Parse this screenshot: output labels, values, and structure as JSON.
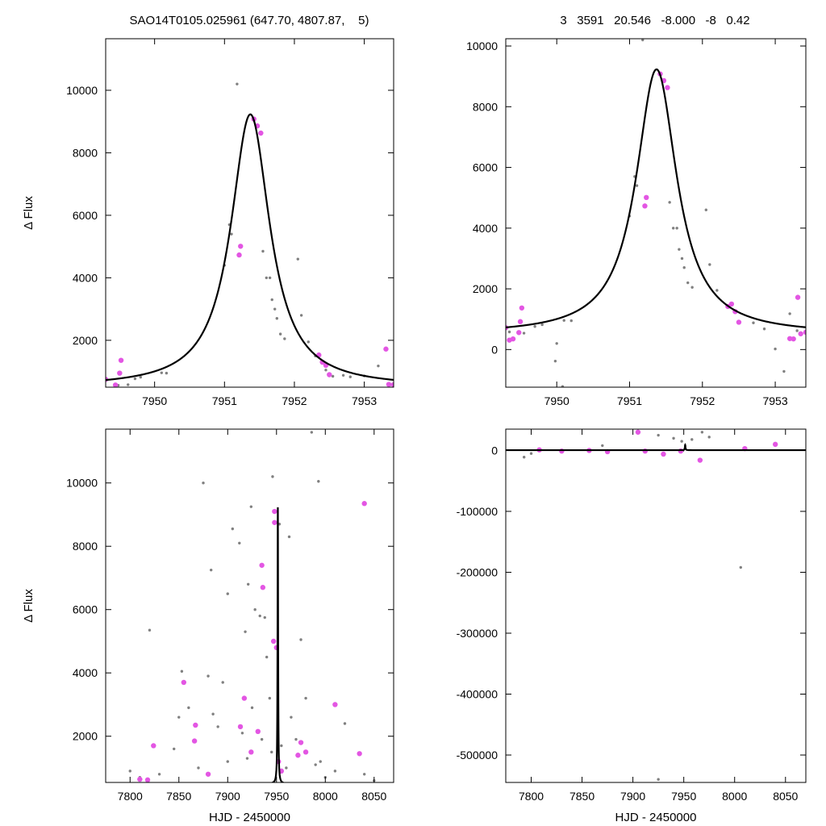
{
  "header": {
    "left": "SAO14T0105.025961 (647.70, 4807.87,    5)",
    "right": "3   3591   20.546   -8.000   -8   0.42"
  },
  "colors": {
    "model": "#000000",
    "points_gray": "#808080",
    "points_magenta": "#e356e3",
    "frame": "#000000"
  },
  "chart_data": [
    {
      "type": "scatter",
      "panel": "top-left",
      "xlabel": "",
      "ylabel": "Δ Flux",
      "xlim": [
        7949.3,
        7953.42
      ],
      "ylim": [
        500,
        11650
      ],
      "xticks": [
        7950,
        7951,
        7952,
        7953
      ],
      "yticks": [
        2000,
        4000,
        6000,
        8000,
        10000
      ],
      "grid": false,
      "model": {
        "t0": 7951.37,
        "peak": 9230,
        "base": 500,
        "width": 0.34
      },
      "gray_points": [
        [
          7949.31,
          740
        ],
        [
          7949.48,
          560
        ],
        [
          7949.62,
          580
        ],
        [
          7949.72,
          770
        ],
        [
          7949.8,
          820
        ],
        [
          7950.1,
          960
        ],
        [
          7950.17,
          950
        ],
        [
          7951.0,
          4400
        ],
        [
          7951.07,
          5700
        ],
        [
          7951.1,
          5400
        ],
        [
          7951.18,
          10200
        ],
        [
          7951.55,
          4850
        ],
        [
          7951.6,
          4000
        ],
        [
          7951.65,
          4000
        ],
        [
          7951.68,
          3300
        ],
        [
          7951.72,
          3000
        ],
        [
          7951.75,
          2700
        ],
        [
          7951.8,
          2200
        ],
        [
          7951.86,
          2050
        ],
        [
          7952.05,
          4600
        ],
        [
          7952.1,
          2800
        ],
        [
          7952.2,
          1950
        ],
        [
          7952.3,
          1500
        ],
        [
          7952.45,
          1050
        ],
        [
          7952.55,
          850
        ],
        [
          7952.7,
          880
        ],
        [
          7952.8,
          830
        ],
        [
          7953.0,
          860
        ],
        [
          7953.2,
          1180
        ],
        [
          7953.38,
          580
        ]
      ],
      "magenta_points": [
        [
          7949.3,
          750
        ],
        [
          7949.5,
          950
        ],
        [
          7949.52,
          1360
        ],
        [
          7949.44,
          570
        ],
        [
          7951.21,
          4730
        ],
        [
          7951.23,
          5010
        ],
        [
          7951.42,
          9080
        ],
        [
          7951.47,
          8860
        ],
        [
          7951.52,
          8630
        ],
        [
          7952.35,
          1530
        ],
        [
          7952.4,
          1300
        ],
        [
          7952.45,
          1200
        ],
        [
          7952.5,
          900
        ],
        [
          7953.31,
          1720
        ],
        [
          7953.35,
          590
        ],
        [
          7953.42,
          580
        ]
      ]
    },
    {
      "type": "scatter",
      "panel": "top-right",
      "xlabel": "",
      "ylabel": "",
      "xlim": [
        7949.3,
        7953.42
      ],
      "ylim": [
        -1240,
        10240
      ],
      "xticks": [
        7950,
        7951,
        7952,
        7953
      ],
      "yticks": [
        0,
        2000,
        4000,
        6000,
        8000,
        10000
      ],
      "grid": false,
      "model": {
        "t0": 7951.37,
        "peak": 9230,
        "base": 500,
        "width": 0.34
      },
      "gray_points": [
        [
          7949.35,
          580
        ],
        [
          7949.55,
          540
        ],
        [
          7949.7,
          760
        ],
        [
          7949.8,
          820
        ],
        [
          7949.98,
          -380
        ],
        [
          7950.0,
          200
        ],
        [
          7950.08,
          -1220
        ],
        [
          7950.1,
          960
        ],
        [
          7950.2,
          950
        ],
        [
          7951.0,
          4400
        ],
        [
          7951.07,
          5700
        ],
        [
          7951.1,
          5400
        ],
        [
          7951.18,
          10200
        ],
        [
          7951.55,
          4850
        ],
        [
          7951.6,
          4000
        ],
        [
          7951.65,
          4000
        ],
        [
          7951.68,
          3300
        ],
        [
          7951.72,
          3000
        ],
        [
          7951.75,
          2700
        ],
        [
          7951.8,
          2200
        ],
        [
          7951.86,
          2050
        ],
        [
          7952.05,
          4600
        ],
        [
          7952.1,
          2800
        ],
        [
          7952.2,
          1950
        ],
        [
          7952.5,
          880
        ],
        [
          7952.7,
          880
        ],
        [
          7952.85,
          680
        ],
        [
          7953.0,
          20
        ],
        [
          7953.12,
          -720
        ],
        [
          7953.2,
          1180
        ],
        [
          7953.3,
          620
        ]
      ],
      "magenta_points": [
        [
          7949.3,
          720
        ],
        [
          7949.35,
          310
        ],
        [
          7949.4,
          350
        ],
        [
          7949.48,
          560
        ],
        [
          7949.5,
          920
        ],
        [
          7949.52,
          1370
        ],
        [
          7951.21,
          4730
        ],
        [
          7951.23,
          5010
        ],
        [
          7951.42,
          9080
        ],
        [
          7951.47,
          8860
        ],
        [
          7951.52,
          8630
        ],
        [
          7952.35,
          1420
        ],
        [
          7952.4,
          1500
        ],
        [
          7952.45,
          1250
        ],
        [
          7952.5,
          900
        ],
        [
          7953.2,
          360
        ],
        [
          7953.25,
          350
        ],
        [
          7953.31,
          1720
        ],
        [
          7953.35,
          520
        ],
        [
          7953.42,
          570
        ]
      ]
    },
    {
      "type": "scatter",
      "panel": "bottom-left",
      "xlabel": "HJD - 2450000",
      "ylabel": "Δ Flux",
      "xlim": [
        7775,
        8070
      ],
      "ylim": [
        540,
        11700
      ],
      "xticks": [
        7800,
        7850,
        7900,
        7950,
        8000,
        8050
      ],
      "yticks": [
        2000,
        4000,
        6000,
        8000,
        10000
      ],
      "grid": false,
      "model": {
        "t0": 7951.37,
        "peak": 9230,
        "base": 500,
        "width": 0.34
      },
      "gray_points": [
        [
          7820,
          5350
        ],
        [
          7853,
          4050
        ],
        [
          7875,
          10000
        ],
        [
          7880,
          3900
        ],
        [
          7883,
          7250
        ],
        [
          7895,
          3700
        ],
        [
          7900,
          6500
        ],
        [
          7905,
          8550
        ],
        [
          7912,
          8100
        ],
        [
          7918,
          5300
        ],
        [
          7921,
          6800
        ],
        [
          7924,
          9250
        ],
        [
          7928,
          6000
        ],
        [
          7933,
          5800
        ],
        [
          7938,
          5750
        ],
        [
          7940,
          4500
        ],
        [
          7943,
          3200
        ],
        [
          7946,
          10200
        ],
        [
          7953,
          8700
        ],
        [
          7963,
          8300
        ],
        [
          7975,
          5050
        ],
        [
          7986,
          11600
        ],
        [
          7993,
          10050
        ],
        [
          7995,
          1200
        ],
        [
          7845,
          1600
        ],
        [
          7850,
          2600
        ],
        [
          7860,
          2900
        ],
        [
          7885,
          2700
        ],
        [
          7890,
          2300
        ],
        [
          7915,
          2100
        ],
        [
          7925,
          2900
        ],
        [
          7935,
          1900
        ],
        [
          7945,
          1500
        ],
        [
          7955,
          1700
        ],
        [
          7965,
          2600
        ],
        [
          7970,
          1900
        ],
        [
          7980,
          3200
        ],
        [
          7990,
          1100
        ],
        [
          8010,
          900
        ],
        [
          8020,
          2400
        ],
        [
          8040,
          800
        ],
        [
          7800,
          900
        ],
        [
          7810,
          700
        ],
        [
          7830,
          800
        ],
        [
          7870,
          1000
        ],
        [
          7900,
          1200
        ],
        [
          7920,
          1300
        ],
        [
          7960,
          1000
        ],
        [
          8000,
          700
        ],
        [
          8050,
          600
        ]
      ],
      "magenta_points": [
        [
          7810,
          640
        ],
        [
          7818,
          620
        ],
        [
          7824,
          1700
        ],
        [
          7855,
          3700
        ],
        [
          7866,
          1850
        ],
        [
          7867,
          2350
        ],
        [
          7880,
          800
        ],
        [
          7913,
          2300
        ],
        [
          7917,
          3200
        ],
        [
          7924,
          1500
        ],
        [
          7931,
          2150
        ],
        [
          7935,
          7400
        ],
        [
          7936,
          6700
        ],
        [
          7947,
          5000
        ],
        [
          7948,
          9100
        ],
        [
          7948,
          8750
        ],
        [
          7950,
          4800
        ],
        [
          7952,
          1200
        ],
        [
          7955,
          900
        ],
        [
          7972,
          1400
        ],
        [
          7975,
          1800
        ],
        [
          7980,
          1500
        ],
        [
          8010,
          3000
        ],
        [
          8035,
          1450
        ],
        [
          8040,
          9350
        ]
      ]
    },
    {
      "type": "scatter",
      "panel": "bottom-right",
      "xlabel": "HJD - 2450000",
      "ylabel": "",
      "xlim": [
        7775,
        8070
      ],
      "ylim": [
        -545000,
        35000
      ],
      "xticks": [
        7800,
        7850,
        7900,
        7950,
        8000,
        8050
      ],
      "yticks": [
        -500000,
        -400000,
        -300000,
        -200000,
        -100000,
        0
      ],
      "grid": false,
      "model": {
        "t0": 7951.37,
        "peak": 9230,
        "base": 500,
        "width": 0.34
      },
      "gray_points": [
        [
          7793,
          -11000
        ],
        [
          7800,
          -5000
        ],
        [
          7870,
          8000
        ],
        [
          7905,
          32000
        ],
        [
          7925,
          25000
        ],
        [
          7940,
          20000
        ],
        [
          7948,
          15000
        ],
        [
          7958,
          18000
        ],
        [
          7968,
          30000
        ],
        [
          7975,
          22000
        ],
        [
          8006,
          -192000
        ],
        [
          7925,
          -540000
        ]
      ],
      "magenta_points": [
        [
          7808,
          1000
        ],
        [
          7830,
          -1000
        ],
        [
          7857,
          0
        ],
        [
          7875,
          -2000
        ],
        [
          7905,
          30000
        ],
        [
          7912,
          -1000
        ],
        [
          7930,
          -6000
        ],
        [
          7947,
          -1000
        ],
        [
          7966,
          -16000
        ],
        [
          8010,
          3000
        ],
        [
          8040,
          10000
        ]
      ]
    }
  ]
}
